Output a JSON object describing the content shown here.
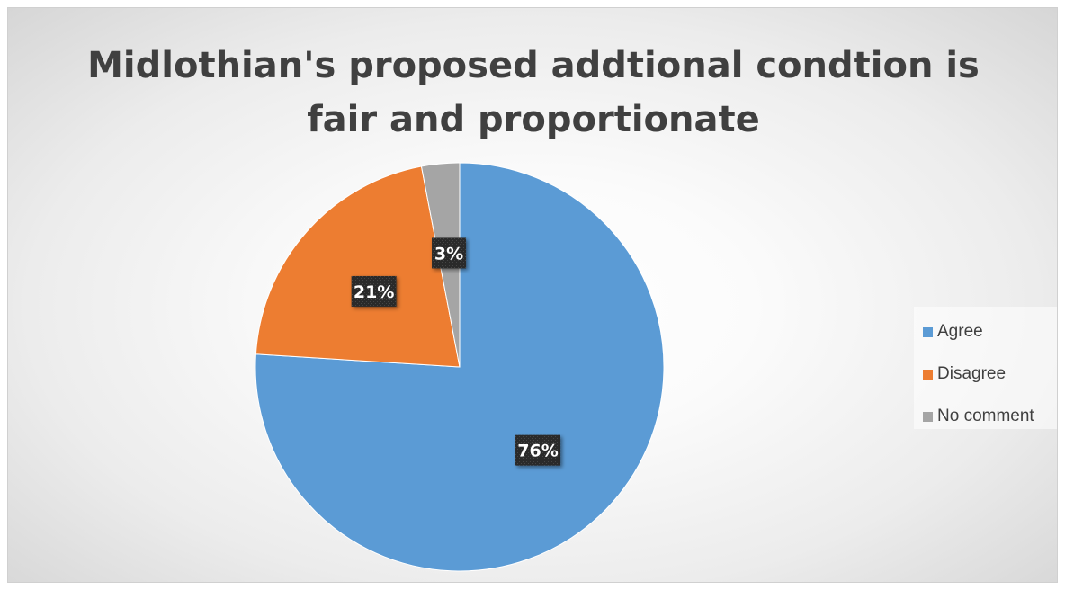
{
  "chart_data": {
    "type": "pie",
    "title": "Midlothian's proposed addtional condtion is fair and proportionate",
    "title_lines": [
      "Midlothian's proposed addtional condtion is",
      "fair and proportionate"
    ],
    "categories": [
      "Agree",
      "Disagree",
      "No comment"
    ],
    "values": [
      76,
      21,
      3
    ],
    "labels": [
      "76%",
      "21%",
      "3%"
    ],
    "colors": [
      "#5B9BD5",
      "#ED7D31",
      "#A5A5A5"
    ],
    "legend_position": "right"
  }
}
